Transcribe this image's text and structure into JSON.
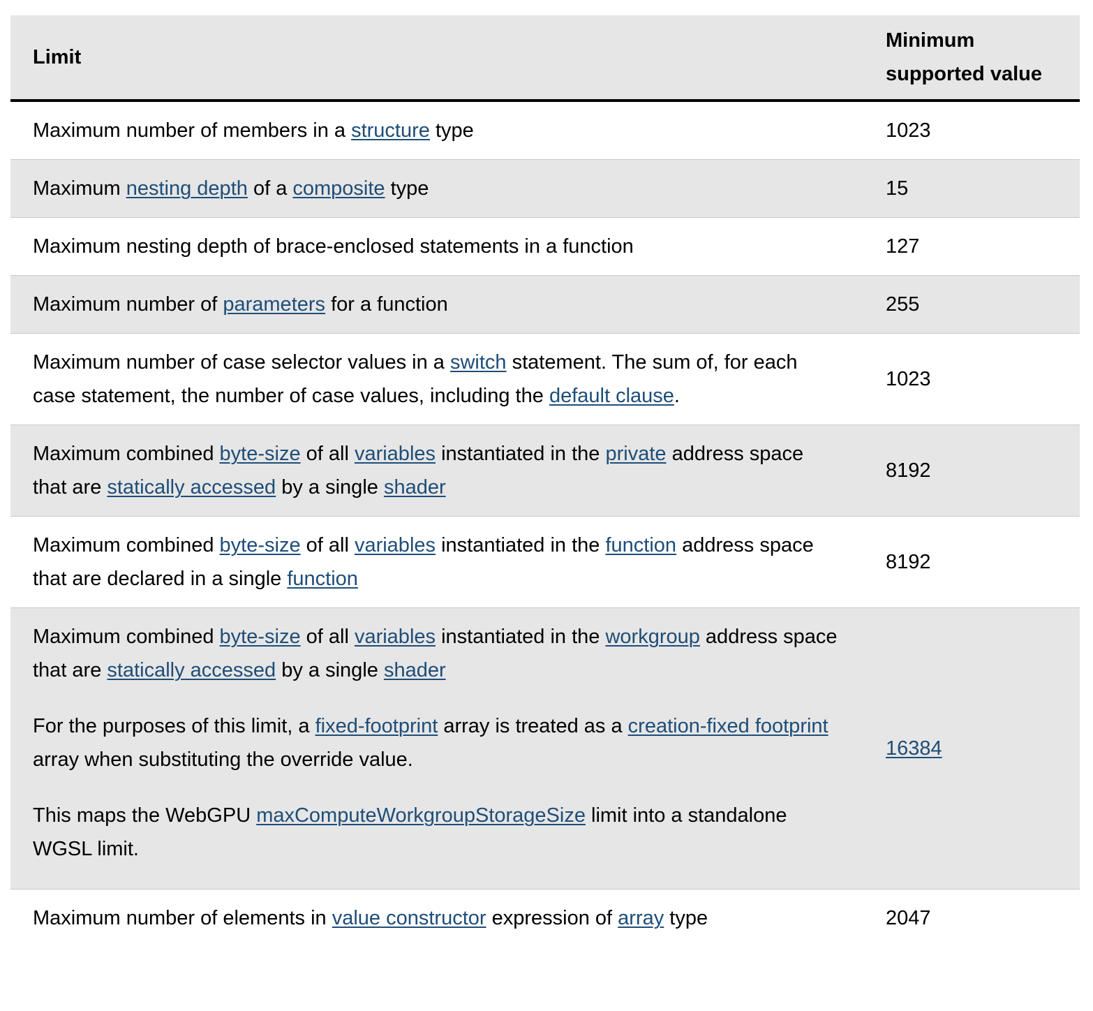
{
  "header": {
    "limit": "Limit",
    "value": "Minimum supported value"
  },
  "rows": [
    {
      "value": "1023",
      "segments": [
        {
          "t": "Maximum number of members in a "
        },
        {
          "t": "structure",
          "link": true
        },
        {
          "t": " type"
        }
      ]
    },
    {
      "value": "15",
      "segments": [
        {
          "t": "Maximum "
        },
        {
          "t": "nesting depth",
          "link": true
        },
        {
          "t": " of a "
        },
        {
          "t": "composite",
          "link": true
        },
        {
          "t": " type"
        }
      ]
    },
    {
      "value": "127",
      "segments": [
        {
          "t": "Maximum nesting depth of brace-enclosed statements in a function"
        }
      ]
    },
    {
      "value": "255",
      "segments": [
        {
          "t": "Maximum number of "
        },
        {
          "t": "parameters",
          "link": true
        },
        {
          "t": " for a function"
        }
      ]
    },
    {
      "value": "1023",
      "segments": [
        {
          "t": "Maximum number of case selector values in a "
        },
        {
          "t": "switch",
          "link": true
        },
        {
          "t": " statement. The sum of, for each case statement, the number of case values, including the "
        },
        {
          "t": "default clause",
          "link": true
        },
        {
          "t": "."
        }
      ]
    },
    {
      "value": "8192",
      "segments": [
        {
          "t": "Maximum combined "
        },
        {
          "t": "byte-size",
          "link": true
        },
        {
          "t": " of all "
        },
        {
          "t": "variables",
          "link": true
        },
        {
          "t": " instantiated in the "
        },
        {
          "t": "private",
          "link": true
        },
        {
          "t": " address space that are "
        },
        {
          "t": "statically accessed",
          "link": true
        },
        {
          "t": " by a single "
        },
        {
          "t": "shader",
          "link": true
        }
      ]
    },
    {
      "value": "8192",
      "segments": [
        {
          "t": "Maximum combined "
        },
        {
          "t": "byte-size",
          "link": true
        },
        {
          "t": " of all "
        },
        {
          "t": "variables",
          "link": true
        },
        {
          "t": " instantiated in the "
        },
        {
          "t": "function",
          "link": true
        },
        {
          "t": " address space that are declared in a single "
        },
        {
          "t": "function",
          "link": true
        }
      ]
    },
    {
      "value": "16384",
      "value_link": true,
      "paragraphs": [
        [
          {
            "t": "Maximum combined "
          },
          {
            "t": "byte-size",
            "link": true
          },
          {
            "t": " of all "
          },
          {
            "t": "variables",
            "link": true
          },
          {
            "t": " instantiated in the "
          },
          {
            "t": "workgroup",
            "link": true
          },
          {
            "t": " address space that are "
          },
          {
            "t": "statically accessed",
            "link": true
          },
          {
            "t": " by a single "
          },
          {
            "t": "shader",
            "link": true
          }
        ],
        [
          {
            "t": "For the purposes of this limit, a "
          },
          {
            "t": "fixed-footprint",
            "link": true
          },
          {
            "t": " array is treated as a "
          },
          {
            "t": "creation-fixed footprint",
            "link": true
          },
          {
            "t": " array when substituting the override value."
          }
        ],
        [
          {
            "t": "This maps the WebGPU "
          },
          {
            "t": "maxComputeWorkgroupStorageSize",
            "link": true
          },
          {
            "t": " limit into a standalone WGSL limit."
          }
        ]
      ]
    },
    {
      "value": "2047",
      "segments": [
        {
          "t": "Maximum number of elements in "
        },
        {
          "t": "value constructor",
          "link": true
        },
        {
          "t": " expression of "
        },
        {
          "t": "array",
          "link": true
        },
        {
          "t": " type"
        }
      ]
    }
  ]
}
